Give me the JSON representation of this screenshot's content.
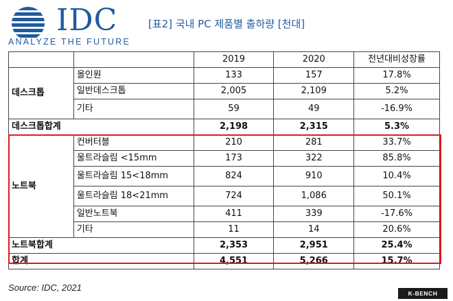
{
  "logo": {
    "text": "IDC",
    "tagline": "ANALYZE THE FUTURE"
  },
  "title": "[표2] 국내 PC 제품별 출하량 [천대]",
  "table": {
    "headers": [
      "",
      "",
      "2019",
      "2020",
      "전년대비성장률"
    ],
    "desktop": {
      "group": "데스크톱",
      "rows": [
        [
          "올인원",
          "133",
          "157",
          "17.8%"
        ],
        [
          "일반데스크톱",
          "2,005",
          "2,109",
          "5.2%"
        ],
        [
          "기타",
          "59",
          "49",
          "-16.9%"
        ]
      ],
      "total": [
        "데스크톱합계",
        "2,198",
        "2,315",
        "5.3%"
      ]
    },
    "notebook": {
      "group": "노트북",
      "rows": [
        [
          "컨버터블",
          "210",
          "281",
          "33.7%"
        ],
        [
          "울트라슬림 <15mm",
          "173",
          "322",
          "85.8%"
        ],
        [
          "울트라슬림 15<18mm",
          "824",
          "910",
          "10.4%"
        ],
        [
          "울트라슬림 18<21mm",
          "724",
          "1,086",
          "50.1%"
        ],
        [
          "일반노트북",
          "411",
          "339",
          "-17.6%"
        ],
        [
          "기타",
          "11",
          "14",
          "20.6%"
        ]
      ],
      "total": [
        "노트북합계",
        "2,353",
        "2,951",
        "25.4%"
      ]
    },
    "grand_total": [
      "합계",
      "4,551",
      "5,266",
      "15.7%"
    ]
  },
  "source": "Source: IDC, 2021",
  "watermark": "K-BENCH",
  "colors": {
    "brand": "#1f5aa0",
    "highlight": "#e0191e"
  }
}
